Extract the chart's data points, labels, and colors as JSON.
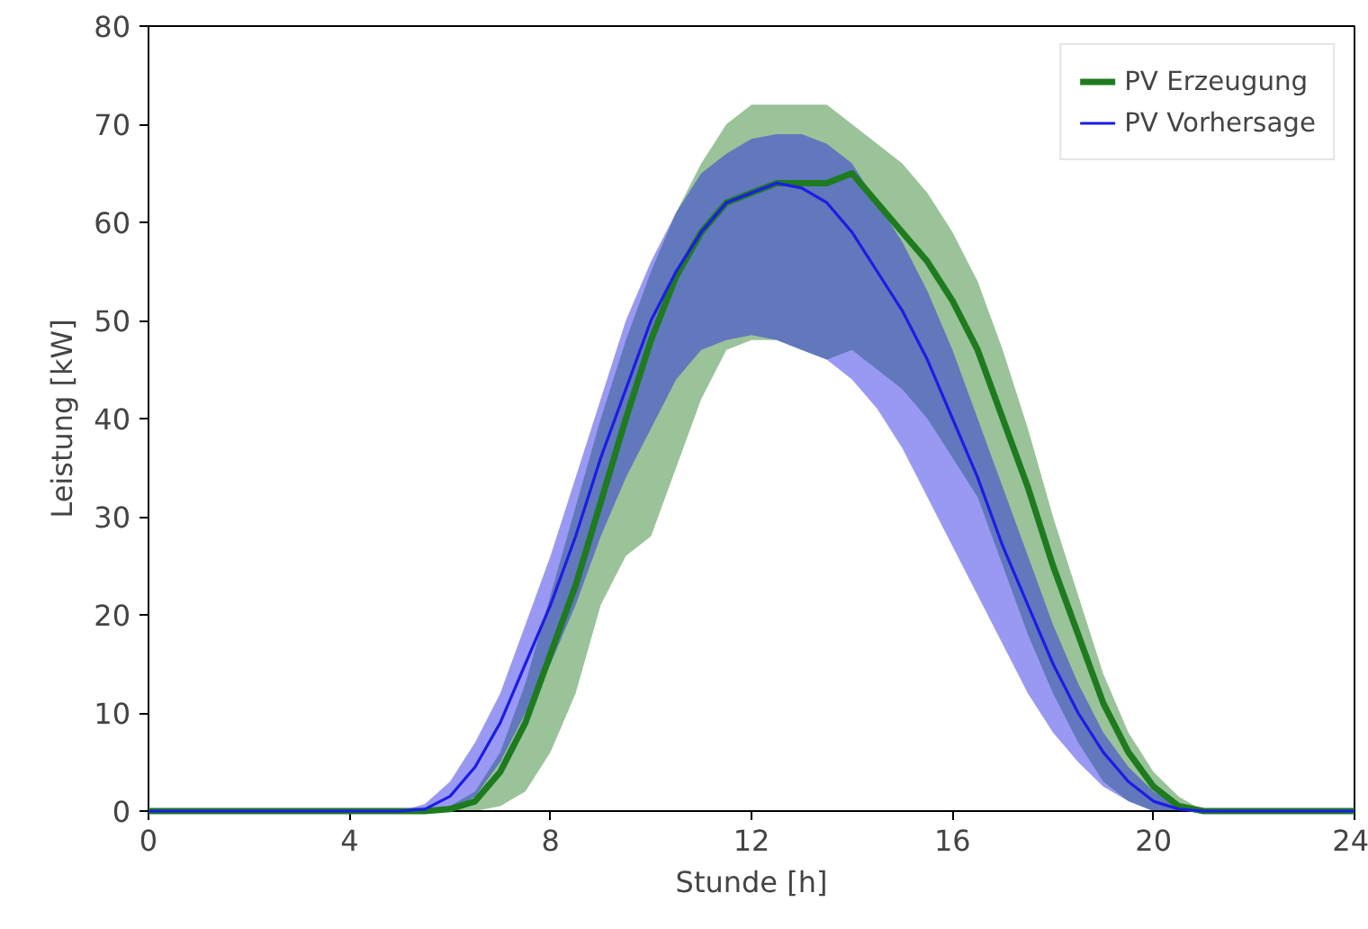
{
  "chart_data": {
    "type": "line",
    "xlabel": "Stunde [h]",
    "ylabel": "Leistung [kW]",
    "x": [
      0,
      1,
      2,
      3,
      4,
      5,
      5.5,
      6,
      6.5,
      7,
      7.5,
      8,
      8.5,
      9,
      9.5,
      10,
      10.5,
      11,
      11.5,
      12,
      12.5,
      13,
      13.5,
      14,
      14.5,
      15,
      15.5,
      16,
      16.5,
      17,
      17.5,
      18,
      18.5,
      19,
      19.5,
      20,
      20.5,
      21,
      22,
      23,
      24
    ],
    "series": [
      {
        "name": "PV Erzeugung",
        "color": "#1e7b1e",
        "values": [
          0,
          0,
          0,
          0,
          0,
          0,
          0,
          0.2,
          1,
          4,
          9,
          16,
          23,
          31.5,
          40,
          48,
          54.5,
          59,
          62,
          63,
          64,
          64,
          64,
          65,
          62,
          59,
          56,
          52,
          47,
          40,
          33,
          25,
          18,
          11,
          6,
          2.5,
          0.5,
          0,
          0,
          0,
          0
        ],
        "lower": [
          0,
          0,
          0,
          0,
          0,
          0,
          0,
          0,
          0,
          0.5,
          2,
          6,
          12,
          21,
          26,
          28,
          35,
          42,
          47,
          48,
          48,
          47,
          46,
          47,
          45,
          43,
          40,
          36,
          32,
          25,
          18,
          12,
          7,
          3,
          1,
          0,
          0,
          0,
          0,
          0,
          0
        ],
        "upper": [
          0,
          0,
          0,
          0,
          0,
          0,
          0,
          0.5,
          2,
          6,
          13,
          22,
          31,
          40,
          48,
          55,
          61,
          66,
          70,
          72,
          72,
          72,
          72,
          70,
          68,
          66,
          63,
          59,
          54,
          47,
          39,
          30,
          22,
          14,
          8,
          4,
          1.5,
          0,
          0,
          0,
          0
        ]
      },
      {
        "name": "PV Vorhersage",
        "color": "#1c1ce6",
        "values": [
          0,
          0,
          0,
          0,
          0,
          0,
          0.2,
          1.5,
          4.5,
          9,
          15,
          21,
          28,
          36,
          43,
          50,
          55,
          59,
          62,
          63,
          64,
          63.5,
          62,
          59,
          55,
          51,
          46,
          40,
          34,
          27,
          21,
          15,
          10,
          6,
          3,
          1,
          0.2,
          0,
          0,
          0,
          0
        ],
        "lower": [
          0,
          0,
          0,
          0,
          0,
          0,
          0,
          0,
          1.5,
          5,
          10,
          15,
          21,
          28,
          34,
          39,
          44,
          47,
          48,
          48.5,
          48,
          47,
          46,
          44,
          41,
          37,
          32,
          27,
          22,
          17,
          12,
          8,
          5,
          2.5,
          1,
          0,
          0,
          0,
          0,
          0,
          0
        ],
        "upper": [
          0,
          0,
          0,
          0,
          0,
          0,
          0.7,
          3,
          7,
          12,
          19,
          26,
          34,
          42,
          50,
          56,
          61,
          65,
          67,
          68.5,
          69,
          69,
          68,
          66,
          62,
          58,
          53,
          47,
          40,
          33,
          26,
          19,
          13,
          8,
          4.5,
          2,
          0.5,
          0,
          0,
          0,
          0
        ]
      }
    ],
    "xlim": [
      0,
      24
    ],
    "xticks": [
      0,
      4,
      8,
      12,
      16,
      20,
      24
    ],
    "ylim": [
      0,
      80
    ],
    "yticks": [
      0,
      10,
      20,
      30,
      40,
      50,
      60,
      70,
      80
    ],
    "legend": "top right",
    "grid": false
  }
}
